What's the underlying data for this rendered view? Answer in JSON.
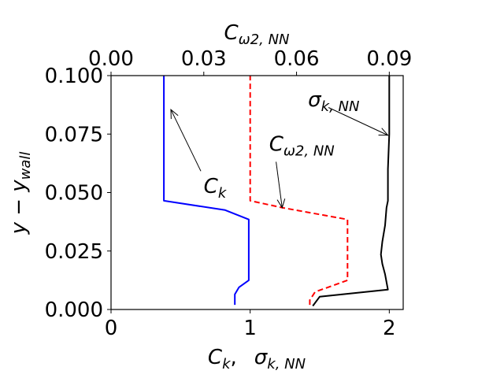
{
  "chart_data": {
    "type": "line",
    "title": "",
    "xlabel": {
      "main": "C",
      "main_sub": "k",
      "sep": ",",
      "second": "σ",
      "second_sub": "k, NN"
    },
    "x2label": {
      "main": "C",
      "main_sub": "ω2, NN"
    },
    "ylabel": {
      "main": "y − y",
      "main_sub": "wall"
    },
    "xlim": [
      0,
      2.1
    ],
    "x2lim": [
      0,
      0.0945
    ],
    "ylim": [
      0,
      0.1
    ],
    "xticks": [
      {
        "value": 0,
        "label": "0"
      },
      {
        "value": 1,
        "label": "1"
      },
      {
        "value": 2,
        "label": "2"
      }
    ],
    "x2ticks": [
      {
        "value": 0,
        "label": "0.00"
      },
      {
        "value": 0.03,
        "label": "0.03"
      },
      {
        "value": 0.06,
        "label": "0.06"
      },
      {
        "value": 0.09,
        "label": "0.09"
      }
    ],
    "yticks": [
      {
        "value": 0,
        "label": "0.000"
      },
      {
        "value": 0.025,
        "label": "0.025"
      },
      {
        "value": 0.05,
        "label": "0.050"
      },
      {
        "value": 0.075,
        "label": "0.075"
      },
      {
        "value": 0.1,
        "label": "0.100"
      }
    ],
    "grid": false,
    "series": [
      {
        "axis": "bottom",
        "color": "#0000ff",
        "dash": "solid",
        "points": [
          [
            0.89,
            0.002
          ],
          [
            0.89,
            0.0065
          ],
          [
            0.92,
            0.0095
          ],
          [
            0.99,
            0.0125
          ],
          [
            0.99,
            0.0385
          ],
          [
            0.82,
            0.0425
          ],
          [
            0.38,
            0.0465
          ],
          [
            0.38,
            0.1
          ]
        ]
      },
      {
        "axis": "top",
        "color": "#ff0000",
        "dash": "dashed",
        "points": [
          [
            0.0643,
            0.002
          ],
          [
            0.0643,
            0.004
          ],
          [
            0.066,
            0.0075
          ],
          [
            0.0765,
            0.0125
          ],
          [
            0.0765,
            0.0385
          ],
          [
            0.0555,
            0.0435
          ],
          [
            0.045,
            0.0465
          ],
          [
            0.045,
            0.1
          ]
        ]
      },
      {
        "axis": "bottom",
        "color": "#000000",
        "dash": "solid",
        "points": [
          [
            1.45,
            0.0015
          ],
          [
            1.5,
            0.0055
          ],
          [
            1.99,
            0.0085
          ],
          [
            1.97,
            0.015
          ],
          [
            1.95,
            0.0195
          ],
          [
            1.94,
            0.0235
          ],
          [
            1.95,
            0.029
          ],
          [
            1.97,
            0.036
          ],
          [
            1.98,
            0.0435
          ],
          [
            1.99,
            0.0465
          ],
          [
            1.99,
            0.06
          ],
          [
            2.0,
            0.075
          ],
          [
            2.0,
            0.1
          ]
        ]
      }
    ],
    "annotations": [
      {
        "text": "C",
        "sub": "k",
        "text_at": [
          0.7,
          0.0525
        ],
        "arrow_to": [
          0.43,
          0.0855
        ]
      },
      {
        "text": "C",
        "sub": "ω2, NN",
        "text_at": [
          1.17,
          0.0705
        ],
        "arrow_to": [
          1.23,
          0.0435
        ]
      },
      {
        "text": "σ",
        "sub": "k, NN",
        "text_at": [
          1.45,
          0.0895
        ],
        "arrow_to": [
          1.99,
          0.0745
        ]
      }
    ]
  }
}
